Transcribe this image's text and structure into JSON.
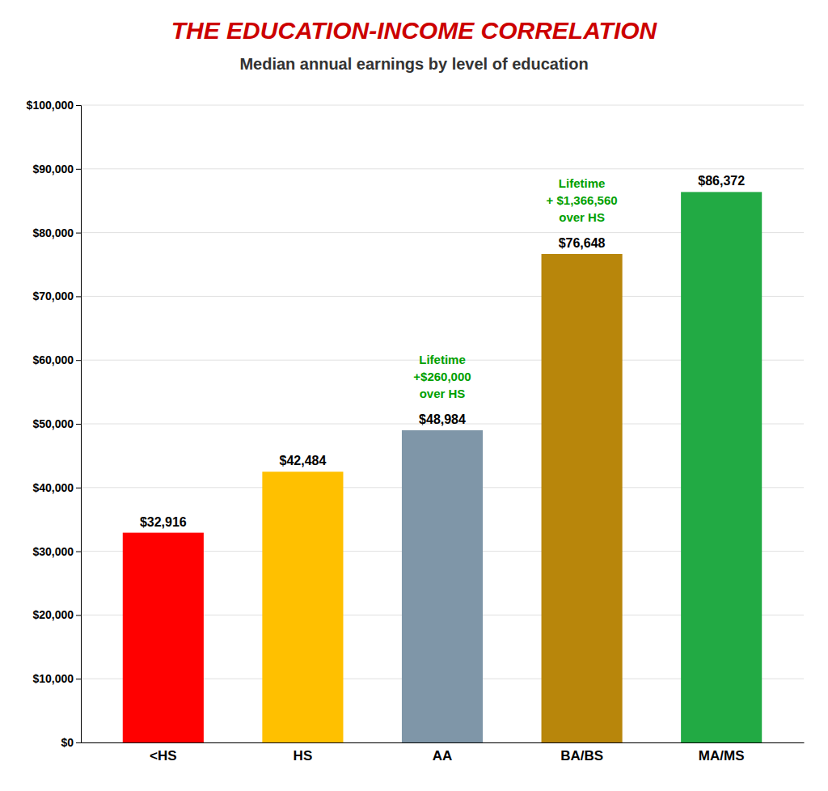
{
  "chart_data": {
    "type": "bar",
    "title": "THE EDUCATION-INCOME CORRELATION",
    "subtitle": "Median annual earnings by level of education",
    "categories": [
      "<HS",
      "HS",
      "AA",
      "BA/BS",
      "MA/MS"
    ],
    "values": [
      32916,
      42484,
      48984,
      76648,
      86372
    ],
    "value_labels": [
      "$32,916",
      "$42,484",
      "$48,984",
      "$76,648",
      "$86,372"
    ],
    "data_labels": true,
    "colors": [
      "#ff0000",
      "#ffc000",
      "#7f96a8",
      "#b8860b",
      "#22aa44"
    ],
    "annotations": [
      {
        "category": "AA",
        "text": "Lifetime\n+$260,000\nover HS"
      },
      {
        "category": "BA/BS",
        "text": "Lifetime\n+ $1,366,560\nover HS"
      }
    ],
    "ylim": [
      0,
      100000
    ],
    "yticks": [
      {
        "value": 0,
        "label": "$0"
      },
      {
        "value": 10000,
        "label": "$10,000"
      },
      {
        "value": 20000,
        "label": "$20,000"
      },
      {
        "value": 30000,
        "label": "$30,000"
      },
      {
        "value": 40000,
        "label": "$40,000"
      },
      {
        "value": 50000,
        "label": "$50,000"
      },
      {
        "value": 60000,
        "label": "$60,000"
      },
      {
        "value": 70000,
        "label": "$70,000"
      },
      {
        "value": 80000,
        "label": "$80,000"
      },
      {
        "value": 90000,
        "label": "$90,000"
      },
      {
        "value": 100000,
        "label": "$100,000"
      }
    ],
    "grid": true
  }
}
